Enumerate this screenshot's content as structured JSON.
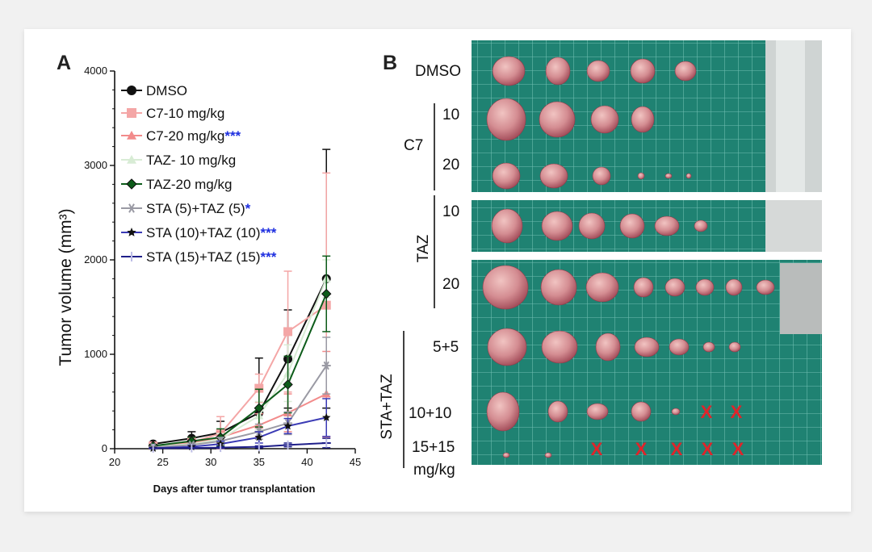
{
  "panels": {
    "a_letter": "A",
    "b_letter": "B"
  },
  "chart_data": {
    "type": "line",
    "xlabel": "Days after tumor transplantation",
    "ylabel": "Tumor volume (mm³)",
    "xlim": [
      20,
      45
    ],
    "ylim": [
      0,
      4000
    ],
    "x_ticks": [
      20,
      25,
      30,
      35,
      40,
      45
    ],
    "y_ticks": [
      0,
      1000,
      2000,
      3000,
      4000
    ],
    "x": [
      24,
      28,
      31,
      35,
      38,
      42
    ],
    "legend_position": "top-left",
    "series": [
      {
        "name": "DMSO",
        "stars": "",
        "color": "#111111",
        "marker": "circle",
        "values": [
          50,
          110,
          170,
          380,
          950,
          1800
        ],
        "errors": [
          20,
          70,
          120,
          580,
          520,
          1370
        ]
      },
      {
        "name": "C7-10 mg/kg",
        "stars": "",
        "color": "#f4a6a6",
        "marker": "square",
        "values": [
          30,
          70,
          160,
          640,
          1240,
          1520
        ],
        "errors": [
          15,
          50,
          180,
          150,
          640,
          1400
        ]
      },
      {
        "name": "C7-20 mg/kg",
        "stars": "***",
        "color": "#f28b8b",
        "marker": "triangle",
        "values": [
          25,
          60,
          120,
          250,
          380,
          580
        ],
        "errors": [
          10,
          30,
          60,
          120,
          200,
          450
        ]
      },
      {
        "name": "TAZ- 10 mg/kg",
        "stars": "",
        "color": "#d8ecd5",
        "marker": "triangle",
        "values": [
          20,
          50,
          100,
          350,
          800,
          1800
        ],
        "errors": [
          10,
          30,
          60,
          150,
          300,
          200
        ]
      },
      {
        "name": "TAZ-20 mg/kg",
        "stars": "",
        "color": "#0d5c1a",
        "marker": "diamond",
        "values": [
          30,
          80,
          120,
          430,
          680,
          1640
        ],
        "errors": [
          15,
          40,
          90,
          200,
          300,
          400
        ]
      },
      {
        "name": "STA (5)+TAZ (5)",
        "stars": "*",
        "color": "#9a9aa4",
        "marker": "asterisk",
        "values": [
          15,
          40,
          80,
          180,
          270,
          880
        ],
        "errors": [
          10,
          20,
          40,
          80,
          120,
          300
        ]
      },
      {
        "name": "STA (10)+TAZ (10)",
        "stars": "***",
        "color": "#3b3bb5",
        "marker": "star",
        "values": [
          5,
          20,
          50,
          120,
          240,
          330
        ],
        "errors": [
          5,
          15,
          30,
          60,
          80,
          200
        ]
      },
      {
        "name": "STA (15)+TAZ (15)",
        "stars": "***",
        "color": "#1f1f8a",
        "marker": "plus",
        "values": [
          5,
          8,
          12,
          20,
          40,
          60
        ],
        "errors": [
          3,
          5,
          8,
          10,
          20,
          50
        ]
      }
    ]
  },
  "photo": {
    "group_labels": {
      "dmso": "DMSO",
      "c7": "C7",
      "c7_10": "10",
      "c7_20": "20",
      "taz": "TAZ",
      "taz_10": "10",
      "taz_20": "20",
      "sta_taz": "STA+TAZ",
      "sta_5": "5+5",
      "sta_10": "10+10",
      "sta_15": "15+15",
      "unit": "mg/kg"
    },
    "x_mark": "X",
    "mat_color": "#1f8272",
    "grid_color": "#7fcabd",
    "tumor_color": "#d48d92"
  }
}
